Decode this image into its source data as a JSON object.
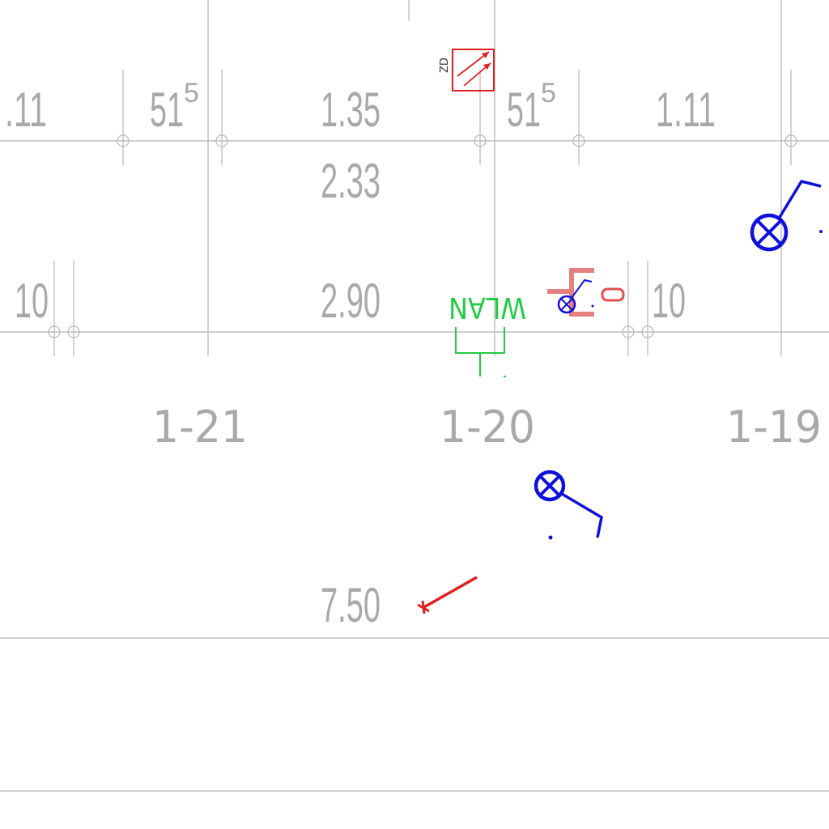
{
  "dimensions": {
    "left_partial": ".11",
    "d_51a_base": "51",
    "d_51a_sup": "5",
    "d_1_35": "1.35",
    "d_51b_base": "51",
    "d_51b_sup": "5",
    "d_1_11": "1.11",
    "d_2_33": "2.33",
    "d_10_left": "10",
    "d_2_90": "2.90",
    "d_10_right": "10",
    "d_7_50": "7.50"
  },
  "rooms": {
    "room_1_21": "1-21",
    "room_1_20": "1-20",
    "room_1_19": "1-19"
  },
  "symbols": {
    "wlan_label": "WLAN",
    "zd_label": "ZD"
  },
  "colors": {
    "dimension_gray": "#a9a9a9",
    "line_gray": "#bdbdbd",
    "blue": "#1010dd",
    "red": "#e02020",
    "green": "#22cc44"
  }
}
